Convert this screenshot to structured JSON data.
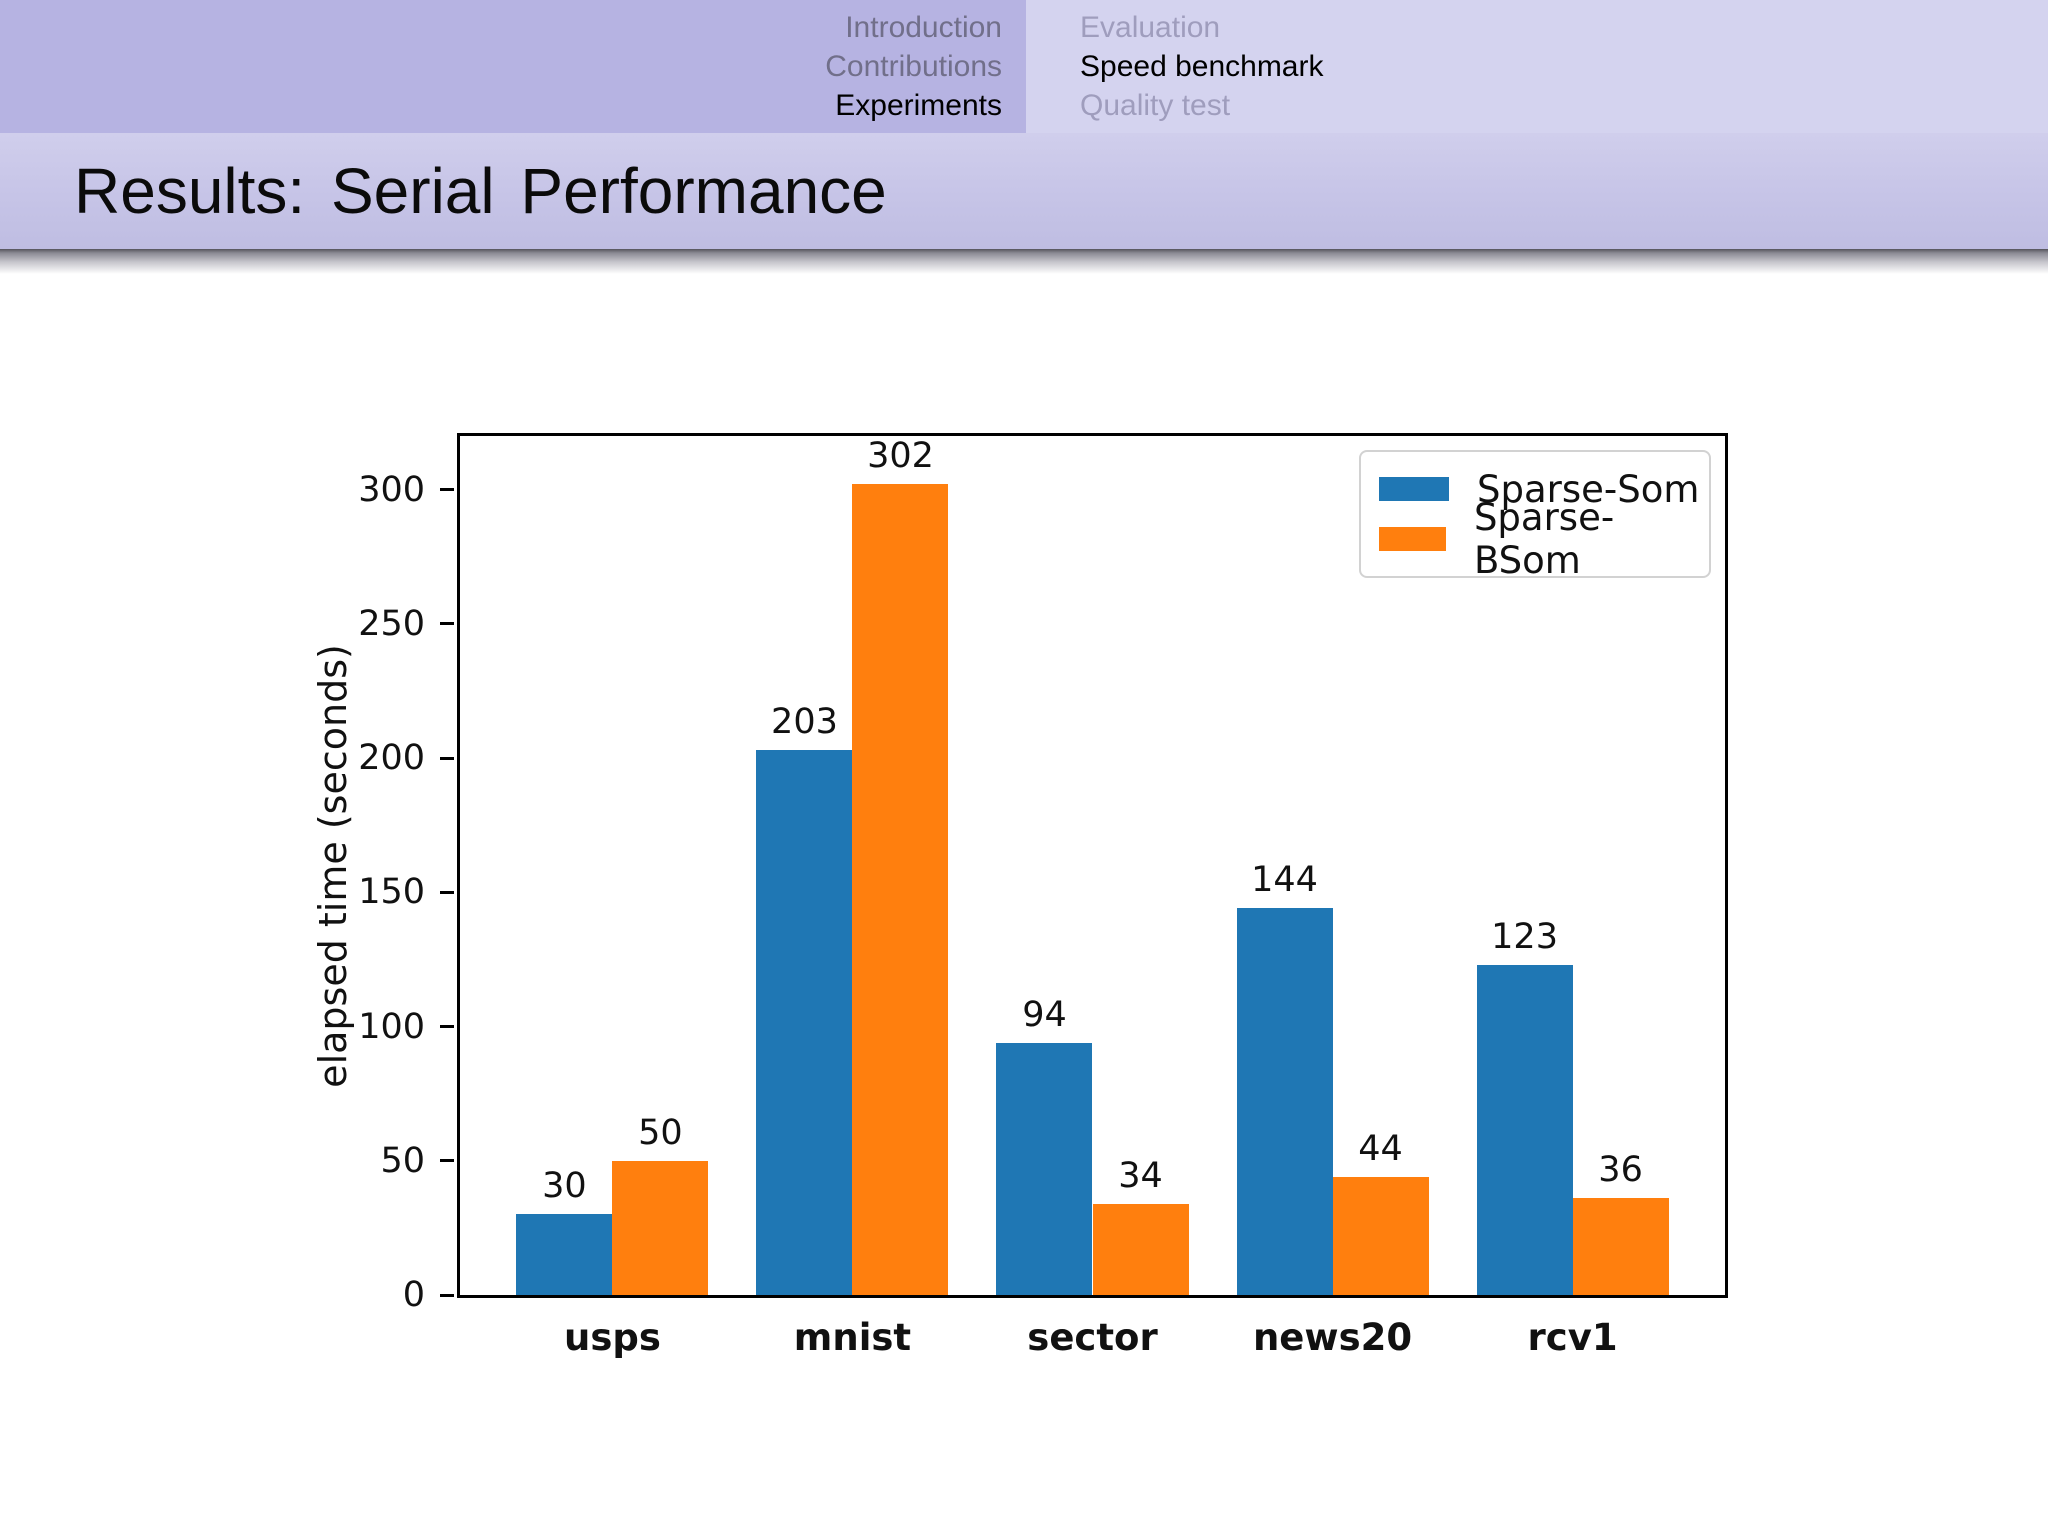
{
  "nav": {
    "sections": [
      {
        "label": "Introduction",
        "active": false
      },
      {
        "label": "Contributions",
        "active": false
      },
      {
        "label": "Experiments",
        "active": true
      }
    ],
    "subsections": [
      {
        "label": "Evaluation",
        "active": false
      },
      {
        "label": "Speed benchmark",
        "active": true
      },
      {
        "label": "Quality test",
        "active": false
      }
    ]
  },
  "title": "Results: Serial Performance",
  "theme": {
    "nav_left_bg": "#b6b3e2",
    "nav_right_bg": "#d4d3ef",
    "title_band_bg": "#c6c4e7",
    "inactive_section_color": "#716f8a",
    "inactive_subsection_color": "#9f9dbd",
    "active_color": "#000000"
  },
  "chart_data": {
    "type": "bar",
    "title": "",
    "xlabel": "",
    "ylabel": "elapsed time (seconds)",
    "categories": [
      "usps",
      "mnist",
      "sector",
      "news20",
      "rcv1"
    ],
    "series": [
      {
        "name": "Sparse-Som",
        "color": "#1f77b4",
        "values": [
          30,
          203,
          94,
          144,
          123
        ]
      },
      {
        "name": "Sparse-BSom",
        "color": "#ff7f0e",
        "values": [
          50,
          302,
          34,
          44,
          36
        ]
      }
    ],
    "ylim": [
      0,
      320
    ],
    "yticks": [
      0,
      50,
      100,
      150,
      200,
      250,
      300
    ],
    "grid": false,
    "legend_position": "upper right",
    "bar_value_labels": true
  }
}
